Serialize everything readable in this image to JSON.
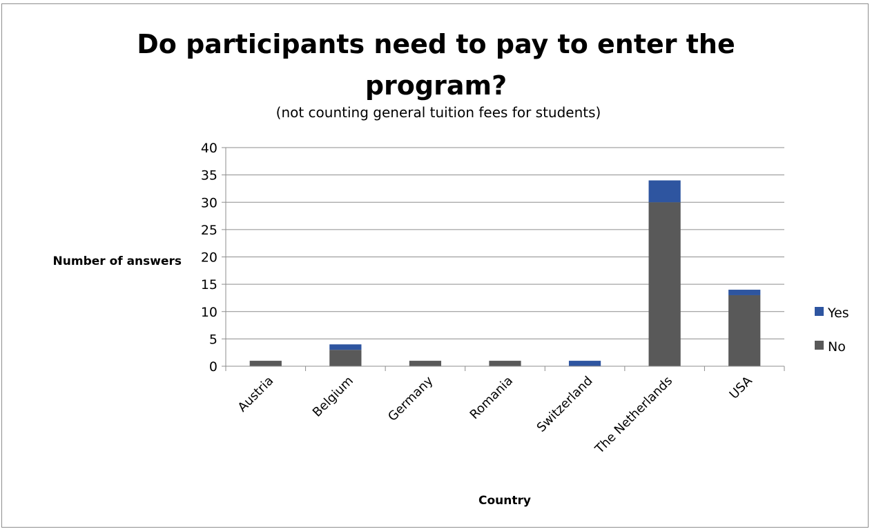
{
  "chart_data": {
    "type": "bar",
    "stacked": true,
    "title_lines": [
      "Do participants need to pay to enter the",
      "program?"
    ],
    "subtitle": "(not counting general tuition fees for students)",
    "xlabel": "Country",
    "ylabel": "Number of answers",
    "ylim": [
      0,
      40
    ],
    "yticks": [
      0,
      5,
      10,
      15,
      20,
      25,
      30,
      35,
      40
    ],
    "grid": true,
    "legend_position": "right",
    "categories": [
      "Austria",
      "Belgium",
      "Germany",
      "Romania",
      "Switzerland",
      "The Netherlands",
      "USA"
    ],
    "series": [
      {
        "name": "No",
        "color": "#595959",
        "values": [
          1,
          3,
          1,
          1,
          0,
          30,
          13
        ]
      },
      {
        "name": "Yes",
        "color": "#2e55a0",
        "values": [
          0,
          1,
          0,
          0,
          1,
          4,
          1
        ]
      }
    ],
    "legend_order": [
      "Yes",
      "No"
    ]
  }
}
